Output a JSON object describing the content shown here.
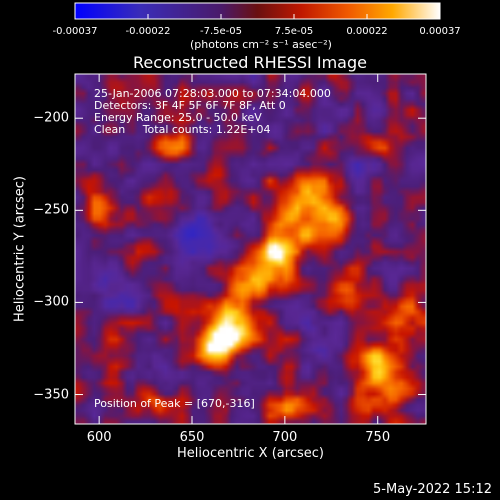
{
  "chart_data": {
    "type": "heatmap",
    "title": "Reconstructed RHESSI Image",
    "xlabel": "Heliocentric X (arcsec)",
    "ylabel": "Heliocentric Y (arcsec)",
    "xlim": [
      587,
      776
    ],
    "ylim": [
      -366,
      -176
    ],
    "x_ticks": [
      "600",
      "650",
      "700",
      "750"
    ],
    "x_tick_values": [
      600,
      650,
      700,
      750
    ],
    "y_ticks": [
      "-200",
      "-250",
      "-300",
      "-350"
    ],
    "y_tick_values": [
      -200,
      -250,
      -300,
      -350
    ],
    "colorbar": {
      "ticks": [
        "-0.00037",
        "-0.00022",
        "-7.5e-05",
        "7.5e-05",
        "0.00022",
        "0.00037"
      ],
      "range": [
        -0.00037,
        0.00037
      ],
      "label": "(photons cm⁻² s⁻¹ asec⁻²)",
      "colormap": [
        "#0000ff",
        "#3020a8",
        "#5a1e8c",
        "#8a1a1a",
        "#c21a00",
        "#f05a00",
        "#ff9a00",
        "#ffd200",
        "#ffffff"
      ]
    },
    "annotations": {
      "time": "25-Jan-2006 07:28:03.000 to 07:34:04.000",
      "detectors": "Detectors: 3F 4F 5F 6F 7F 8F, Att 0",
      "energy": "Energy Range: 25.0 - 50.0 keV",
      "clean": "Clean     Total counts: 1.22E+04",
      "peak": "Position of Peak = [670,-316]"
    },
    "peak": {
      "x": 670,
      "y": -316
    },
    "sources": [
      {
        "x": 672,
        "y": -312,
        "amp": 1.0,
        "sx": 9,
        "sy": 12
      },
      {
        "x": 662,
        "y": -325,
        "amp": 0.75,
        "sx": 7,
        "sy": 7
      },
      {
        "x": 688,
        "y": -285,
        "amp": 0.85,
        "sx": 9,
        "sy": 10
      },
      {
        "x": 700,
        "y": -268,
        "amp": 0.75,
        "sx": 8,
        "sy": 9
      },
      {
        "x": 712,
        "y": -245,
        "amp": 0.8,
        "sx": 11,
        "sy": 9
      },
      {
        "x": 725,
        "y": -258,
        "amp": 0.55,
        "sx": 8,
        "sy": 8
      },
      {
        "x": 732,
        "y": -295,
        "amp": 0.45,
        "sx": 8,
        "sy": 8
      },
      {
        "x": 752,
        "y": -340,
        "amp": 0.75,
        "sx": 11,
        "sy": 14
      },
      {
        "x": 765,
        "y": -310,
        "amp": 0.45,
        "sx": 8,
        "sy": 9
      },
      {
        "x": 700,
        "y": -355,
        "amp": 0.45,
        "sx": 10,
        "sy": 7
      },
      {
        "x": 638,
        "y": -215,
        "amp": 0.45,
        "sx": 9,
        "sy": 8
      },
      {
        "x": 600,
        "y": -250,
        "amp": 0.35,
        "sx": 7,
        "sy": 8
      },
      {
        "x": 630,
        "y": -355,
        "amp": 0.35,
        "sx": 9,
        "sy": 6
      },
      {
        "x": 750,
        "y": -215,
        "amp": 0.35,
        "sx": 9,
        "sy": 8
      },
      {
        "x": 610,
        "y": -330,
        "amp": 0.3,
        "sx": 7,
        "sy": 7
      },
      {
        "x": 652,
        "y": -262,
        "amp": -0.45,
        "sx": 8,
        "sy": 9
      },
      {
        "x": 608,
        "y": -290,
        "amp": -0.35,
        "sx": 9,
        "sy": 9
      },
      {
        "x": 740,
        "y": -228,
        "amp": -0.35,
        "sx": 8,
        "sy": 8
      },
      {
        "x": 700,
        "y": -205,
        "amp": -0.3,
        "sx": 8,
        "sy": 7
      },
      {
        "x": 720,
        "y": -320,
        "amp": -0.3,
        "sx": 7,
        "sy": 8
      }
    ]
  },
  "footer": {
    "date": "5-May-2022 15:12"
  }
}
